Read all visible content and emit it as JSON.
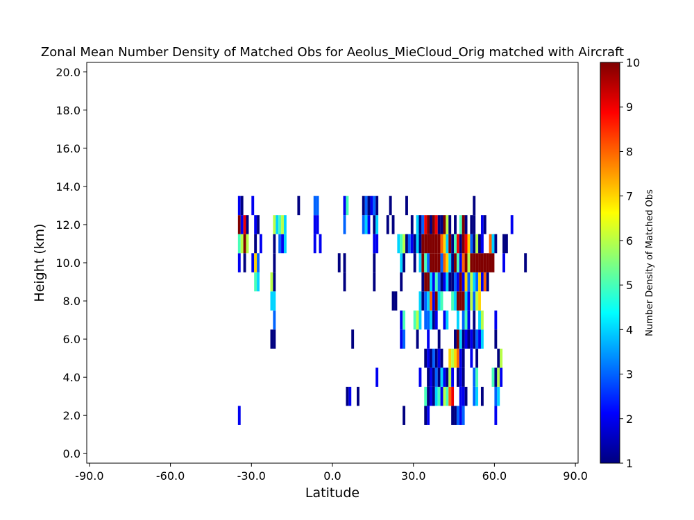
{
  "chart_data": {
    "type": "heatmap",
    "title": "Zonal Mean Number Density of Matched Obs for Aeolus_MieCloud_Orig matched with Aircraft",
    "xlabel": "Latitude",
    "ylabel": "Height (km)",
    "xlim": [
      -91,
      91
    ],
    "ylim": [
      -0.5,
      20.5
    ],
    "xticks": [
      -90,
      -60,
      -30,
      0,
      30,
      60,
      90
    ],
    "xtick_labels": [
      "-90.0",
      "-60.0",
      "-30.0",
      "0.0",
      "30.0",
      "60.0",
      "90.0"
    ],
    "yticks": [
      0,
      2,
      4,
      6,
      8,
      10,
      12,
      14,
      16,
      18,
      20
    ],
    "ytick_labels": [
      "0.0",
      "2.0",
      "4.0",
      "6.0",
      "8.0",
      "10.0",
      "12.0",
      "14.0",
      "16.0",
      "18.0",
      "20.0"
    ],
    "grid": false,
    "lat_bin_width": 1,
    "height_bin_width": 1,
    "colorbar": {
      "label": "Number Density of Matched Obs",
      "min": 1,
      "max": 10,
      "ticks": [
        1,
        2,
        3,
        4,
        5,
        6,
        7,
        8,
        9,
        10
      ],
      "colormap": "jet"
    },
    "rows": [
      {
        "height": 2,
        "cells": [
          [
            -35,
            2
          ],
          [
            26,
            1
          ],
          [
            34,
            1
          ],
          [
            35,
            2
          ],
          [
            44,
            1
          ],
          [
            45,
            1
          ],
          [
            46,
            3
          ],
          [
            47,
            2
          ],
          [
            48,
            3
          ],
          [
            60,
            2
          ]
        ]
      },
      {
        "height": 3,
        "cells": [
          [
            5,
            1
          ],
          [
            6,
            2
          ],
          [
            9,
            1
          ],
          [
            34,
            5
          ],
          [
            35,
            1
          ],
          [
            36,
            2
          ],
          [
            37,
            1
          ],
          [
            38,
            4
          ],
          [
            39,
            5
          ],
          [
            40,
            2
          ],
          [
            41,
            6
          ],
          [
            42,
            5
          ],
          [
            43,
            8
          ],
          [
            44,
            9
          ],
          [
            47,
            2
          ],
          [
            48,
            2
          ],
          [
            49,
            1
          ],
          [
            52,
            3
          ],
          [
            53,
            4
          ],
          [
            55,
            1
          ],
          [
            60,
            3
          ],
          [
            61,
            4
          ]
        ]
      },
      {
        "height": 4,
        "cells": [
          [
            16,
            2
          ],
          [
            32,
            2
          ],
          [
            35,
            1
          ],
          [
            36,
            2
          ],
          [
            37,
            1
          ],
          [
            38,
            3
          ],
          [
            39,
            1
          ],
          [
            40,
            4
          ],
          [
            41,
            2
          ],
          [
            42,
            1
          ],
          [
            43,
            6
          ],
          [
            44,
            2
          ],
          [
            46,
            1
          ],
          [
            47,
            2
          ],
          [
            48,
            1
          ],
          [
            52,
            3
          ],
          [
            53,
            5
          ],
          [
            59,
            5
          ],
          [
            60,
            1
          ],
          [
            61,
            6
          ],
          [
            62,
            2
          ]
        ]
      },
      {
        "height": 5,
        "cells": [
          [
            34,
            1
          ],
          [
            35,
            2
          ],
          [
            36,
            1
          ],
          [
            37,
            3
          ],
          [
            38,
            1
          ],
          [
            39,
            2
          ],
          [
            40,
            1
          ],
          [
            43,
            7
          ],
          [
            44,
            6
          ],
          [
            45,
            7
          ],
          [
            46,
            8
          ],
          [
            47,
            2
          ],
          [
            48,
            1
          ],
          [
            51,
            2
          ],
          [
            53,
            1
          ],
          [
            61,
            1
          ],
          [
            62,
            6
          ]
        ]
      },
      {
        "height": 6,
        "cells": [
          [
            -23,
            1
          ],
          [
            -22,
            1
          ],
          [
            7,
            1
          ],
          [
            25,
            2
          ],
          [
            26,
            3
          ],
          [
            31,
            1
          ],
          [
            35,
            2
          ],
          [
            39,
            1
          ],
          [
            45,
            1
          ],
          [
            46,
            10
          ],
          [
            47,
            4
          ],
          [
            48,
            1
          ],
          [
            49,
            2
          ],
          [
            50,
            1
          ],
          [
            51,
            2
          ],
          [
            52,
            1
          ],
          [
            53,
            3
          ],
          [
            54,
            2
          ],
          [
            55,
            4
          ],
          [
            60,
            1
          ]
        ]
      },
      {
        "height": 7,
        "cells": [
          [
            -22,
            3
          ],
          [
            25,
            2
          ],
          [
            26,
            5
          ],
          [
            30,
            5
          ],
          [
            31,
            6
          ],
          [
            32,
            4
          ],
          [
            34,
            3
          ],
          [
            35,
            3
          ],
          [
            36,
            4
          ],
          [
            37,
            1
          ],
          [
            38,
            2
          ],
          [
            41,
            2
          ],
          [
            42,
            4
          ],
          [
            46,
            4
          ],
          [
            48,
            3
          ],
          [
            49,
            5
          ],
          [
            50,
            2
          ],
          [
            52,
            1
          ],
          [
            54,
            4
          ],
          [
            55,
            6
          ],
          [
            60,
            2
          ]
        ]
      },
      {
        "height": 8,
        "cells": [
          [
            -23,
            4
          ],
          [
            -22,
            4
          ],
          [
            22,
            1
          ],
          [
            23,
            1
          ],
          [
            32,
            4
          ],
          [
            33,
            1
          ],
          [
            34,
            3
          ],
          [
            35,
            4
          ],
          [
            36,
            8
          ],
          [
            37,
            2
          ],
          [
            38,
            10
          ],
          [
            39,
            4
          ],
          [
            40,
            5
          ],
          [
            44,
            5
          ],
          [
            45,
            4
          ],
          [
            46,
            10
          ],
          [
            47,
            10
          ],
          [
            48,
            10
          ],
          [
            49,
            4
          ],
          [
            50,
            2
          ],
          [
            51,
            6
          ],
          [
            52,
            3
          ],
          [
            53,
            6
          ],
          [
            54,
            7
          ]
        ]
      },
      {
        "height": 9,
        "cells": [
          [
            -29,
            5
          ],
          [
            -28,
            4
          ],
          [
            -23,
            6
          ],
          [
            -22,
            1
          ],
          [
            4,
            1
          ],
          [
            15,
            1
          ],
          [
            25,
            1
          ],
          [
            33,
            1
          ],
          [
            34,
            10
          ],
          [
            35,
            10
          ],
          [
            36,
            4
          ],
          [
            37,
            2
          ],
          [
            38,
            5
          ],
          [
            39,
            3
          ],
          [
            40,
            1
          ],
          [
            41,
            2
          ],
          [
            42,
            4
          ],
          [
            43,
            1
          ],
          [
            44,
            1
          ],
          [
            45,
            3
          ],
          [
            46,
            2
          ],
          [
            47,
            10
          ],
          [
            48,
            2
          ],
          [
            49,
            7
          ],
          [
            50,
            3
          ],
          [
            51,
            6
          ],
          [
            52,
            4
          ],
          [
            53,
            3
          ],
          [
            54,
            7
          ],
          [
            55,
            2
          ],
          [
            56,
            8
          ],
          [
            57,
            1
          ]
        ]
      },
      {
        "height": 10,
        "cells": [
          [
            -35,
            2
          ],
          [
            -33,
            1
          ],
          [
            -30,
            2
          ],
          [
            -29,
            7
          ],
          [
            -28,
            3
          ],
          [
            -22,
            1
          ],
          [
            2,
            1
          ],
          [
            4,
            1
          ],
          [
            15,
            1
          ],
          [
            25,
            4
          ],
          [
            26,
            1
          ],
          [
            30,
            1
          ],
          [
            32,
            4
          ],
          [
            33,
            10
          ],
          [
            34,
            5
          ],
          [
            35,
            3
          ],
          [
            36,
            10
          ],
          [
            37,
            10
          ],
          [
            38,
            10
          ],
          [
            39,
            10
          ],
          [
            40,
            3
          ],
          [
            41,
            8
          ],
          [
            42,
            7
          ],
          [
            43,
            4
          ],
          [
            44,
            1
          ],
          [
            45,
            10
          ],
          [
            46,
            5
          ],
          [
            47,
            2
          ],
          [
            48,
            8
          ],
          [
            49,
            10
          ],
          [
            50,
            6
          ],
          [
            51,
            10
          ],
          [
            52,
            10
          ],
          [
            53,
            10
          ],
          [
            54,
            10
          ],
          [
            55,
            10
          ],
          [
            56,
            10
          ],
          [
            57,
            10
          ],
          [
            58,
            10
          ],
          [
            59,
            10
          ],
          [
            63,
            2
          ],
          [
            71,
            1
          ]
        ]
      },
      {
        "height": 11,
        "cells": [
          [
            -35,
            5
          ],
          [
            -34,
            6
          ],
          [
            -33,
            10
          ],
          [
            -32,
            6
          ],
          [
            -29,
            1
          ],
          [
            -27,
            2
          ],
          [
            -22,
            1
          ],
          [
            -20,
            3
          ],
          [
            -19,
            2
          ],
          [
            -18,
            4
          ],
          [
            -7,
            2
          ],
          [
            -5,
            2
          ],
          [
            15,
            2
          ],
          [
            16,
            2
          ],
          [
            24,
            4
          ],
          [
            25,
            5
          ],
          [
            26,
            6
          ],
          [
            27,
            1
          ],
          [
            28,
            3
          ],
          [
            29,
            2
          ],
          [
            30,
            1
          ],
          [
            31,
            4
          ],
          [
            32,
            1
          ],
          [
            33,
            10
          ],
          [
            34,
            10
          ],
          [
            35,
            10
          ],
          [
            36,
            10
          ],
          [
            37,
            10
          ],
          [
            38,
            10
          ],
          [
            39,
            10
          ],
          [
            40,
            8
          ],
          [
            41,
            7
          ],
          [
            42,
            4
          ],
          [
            43,
            10
          ],
          [
            44,
            1
          ],
          [
            45,
            5
          ],
          [
            46,
            9
          ],
          [
            47,
            1
          ],
          [
            48,
            10
          ],
          [
            49,
            9
          ],
          [
            50,
            7
          ],
          [
            51,
            3
          ],
          [
            52,
            1
          ],
          [
            53,
            6
          ],
          [
            54,
            1
          ],
          [
            55,
            2
          ],
          [
            58,
            8
          ],
          [
            59,
            4
          ],
          [
            60,
            1
          ],
          [
            63,
            1
          ],
          [
            64,
            1
          ]
        ]
      },
      {
        "height": 12,
        "cells": [
          [
            -35,
            10
          ],
          [
            -34,
            2
          ],
          [
            -33,
            9
          ],
          [
            -32,
            1
          ],
          [
            -29,
            2
          ],
          [
            -28,
            1
          ],
          [
            -22,
            6
          ],
          [
            -21,
            4
          ],
          [
            -20,
            5
          ],
          [
            -19,
            6
          ],
          [
            -18,
            4
          ],
          [
            -7,
            2
          ],
          [
            -6,
            2
          ],
          [
            4,
            3
          ],
          [
            11,
            3
          ],
          [
            12,
            4
          ],
          [
            13,
            2
          ],
          [
            15,
            1
          ],
          [
            16,
            4
          ],
          [
            20,
            1
          ],
          [
            22,
            1
          ],
          [
            29,
            1
          ],
          [
            31,
            4
          ],
          [
            32,
            1
          ],
          [
            33,
            3
          ],
          [
            34,
            9
          ],
          [
            35,
            10
          ],
          [
            36,
            1
          ],
          [
            37,
            10
          ],
          [
            38,
            9
          ],
          [
            39,
            1
          ],
          [
            40,
            1
          ],
          [
            41,
            10
          ],
          [
            42,
            6
          ],
          [
            43,
            1
          ],
          [
            45,
            1
          ],
          [
            47,
            5
          ],
          [
            48,
            10
          ],
          [
            49,
            1
          ],
          [
            51,
            1
          ],
          [
            52,
            1
          ],
          [
            55,
            2
          ],
          [
            56,
            1
          ],
          [
            66,
            2
          ]
        ]
      },
      {
        "height": 13,
        "cells": [
          [
            -35,
            2
          ],
          [
            -34,
            1
          ],
          [
            -30,
            2
          ],
          [
            -13,
            1
          ],
          [
            -7,
            3
          ],
          [
            -6,
            3
          ],
          [
            4,
            2
          ],
          [
            5,
            5
          ],
          [
            11,
            1
          ],
          [
            12,
            3
          ],
          [
            13,
            1
          ],
          [
            14,
            2
          ],
          [
            15,
            3
          ],
          [
            16,
            1
          ],
          [
            21,
            1
          ],
          [
            27,
            1
          ],
          [
            52,
            1
          ]
        ]
      }
    ]
  }
}
